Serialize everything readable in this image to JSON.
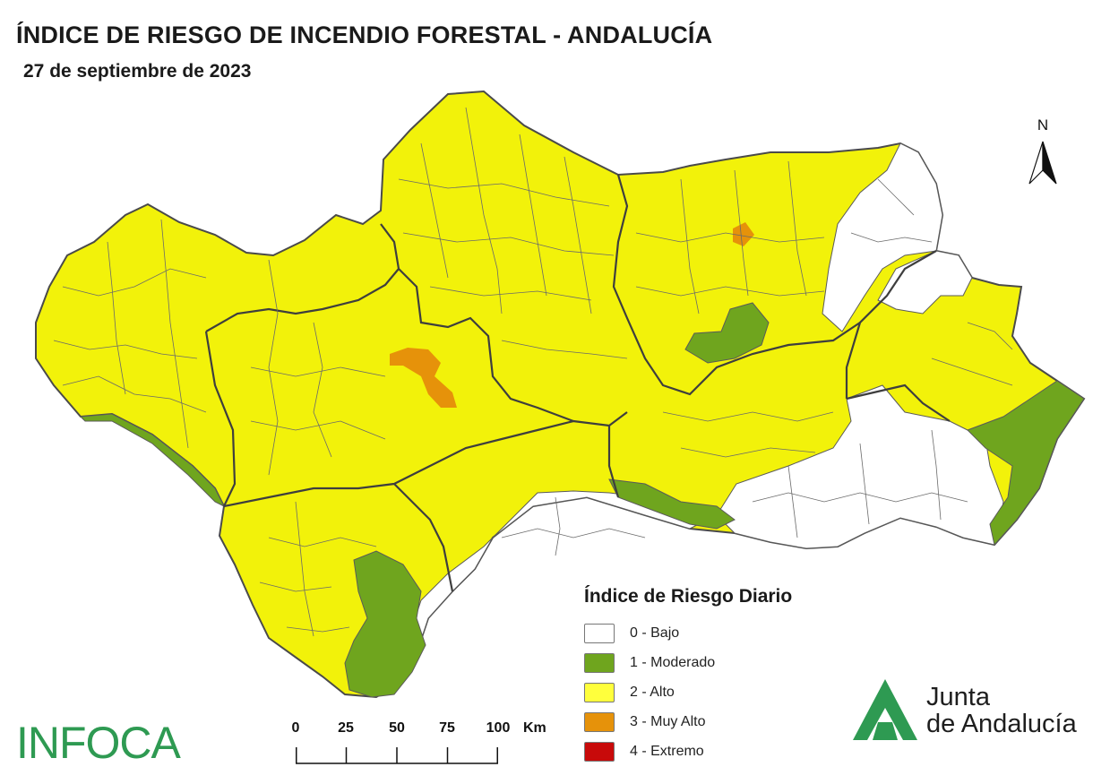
{
  "header": {
    "title": "ÍNDICE DE RIESGO DE INCENDIO FORESTAL - ANDALUCÍA",
    "date": "27 de septiembre de 2023"
  },
  "north_arrow": {
    "label": "N"
  },
  "legend": {
    "title": "Índice de Riesgo Diario",
    "items": [
      {
        "label": "0 - Bajo",
        "color": "#ffffff"
      },
      {
        "label": "1 - Moderado",
        "color": "#6fa51e"
      },
      {
        "label": "2 - Alto",
        "color": "#ffff3c"
      },
      {
        "label": "3 - Muy Alto",
        "color": "#e6920a"
      },
      {
        "label": "4 - Extremo",
        "color": "#c80a0a"
      }
    ]
  },
  "scale_bar": {
    "ticks": [
      "0",
      "25",
      "50",
      "75",
      "100"
    ],
    "unit": "Km"
  },
  "logos": {
    "infoca": "INFOCA",
    "junta_line1": "Junta",
    "junta_line2": "de Andalucía",
    "junta_color": "#2e9a52"
  },
  "map": {
    "region_fill": "#f2f20a",
    "border_color": "#555555"
  }
}
